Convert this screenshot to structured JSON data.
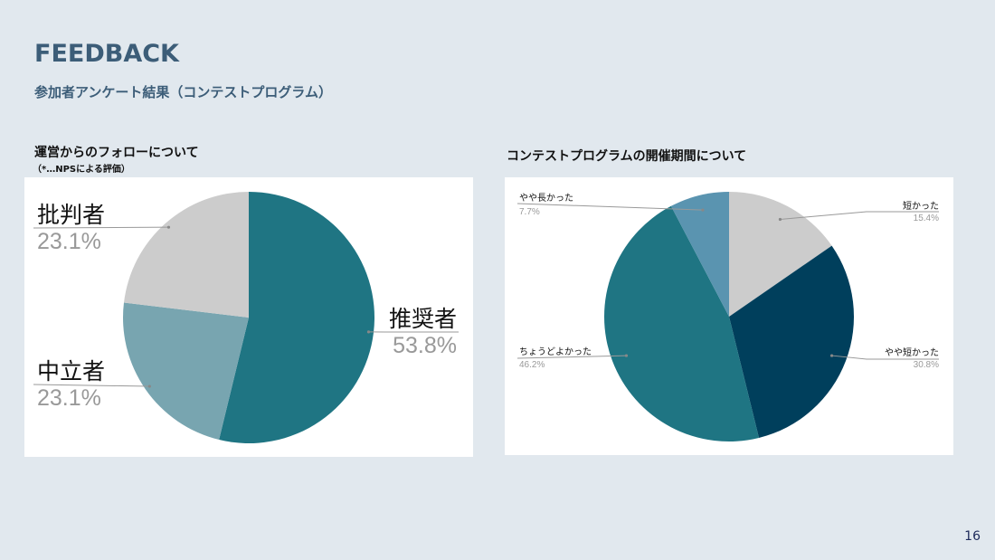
{
  "slide": {
    "title": "FEEDBACK",
    "subtitle": "参加者アンケート結果（コンテストプログラム）",
    "page_number": "16"
  },
  "chart_data": [
    {
      "type": "pie",
      "title": "運営からのフォローについて",
      "note": "（*…NPSによる評価）",
      "slices": [
        {
          "label": "推奨者",
          "value": 53.8,
          "value_label": "53.8%",
          "color": "#1f7583"
        },
        {
          "label": "中立者",
          "value": 23.1,
          "value_label": "23.1%",
          "color": "#78a5b0"
        },
        {
          "label": "批判者",
          "value": 23.1,
          "value_label": "23.1%",
          "color": "#cccccc"
        }
      ]
    },
    {
      "type": "pie",
      "title": "コンテストプログラムの開催期間について",
      "slices": [
        {
          "label": "短かった",
          "value": 15.4,
          "value_label": "15.4%",
          "color": "#cccccc"
        },
        {
          "label": "やや短かった",
          "value": 30.8,
          "value_label": "30.8%",
          "color": "#003f5c"
        },
        {
          "label": "ちょうどよかった",
          "value": 46.2,
          "value_label": "46.2%",
          "color": "#1f7583"
        },
        {
          "label": "やや長かった",
          "value": 7.7,
          "value_label": "7.7%",
          "color": "#5a94b0"
        }
      ]
    }
  ]
}
